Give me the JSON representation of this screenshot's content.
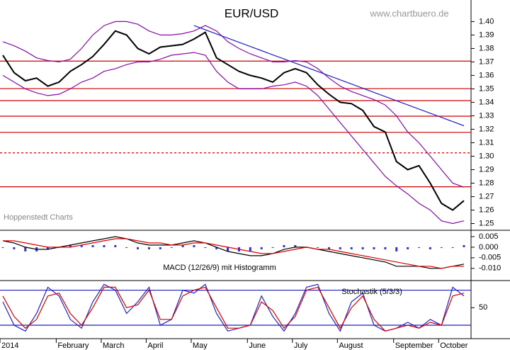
{
  "chart_data": [
    {
      "type": "line",
      "title": "EUR/USD",
      "source": "www.chartbuero.de",
      "annotation": "Hoppenstedt Charts",
      "categories": [
        "2014",
        null,
        null,
        null,
        null,
        "February",
        null,
        null,
        null,
        "March",
        null,
        null,
        null,
        "April",
        null,
        null,
        null,
        "May",
        null,
        null,
        null,
        null,
        "June",
        null,
        null,
        null,
        "July",
        null,
        null,
        null,
        "August",
        null,
        null,
        null,
        null,
        "September",
        null,
        null,
        null,
        "October",
        null,
        null
      ],
      "ylim": [
        1.245,
        1.416
      ],
      "yticks": [
        1.25,
        1.26,
        1.27,
        1.28,
        1.29,
        {
          "value": 1.3,
          "label": "1.30"
        },
        1.31,
        1.32,
        1.33,
        1.34,
        1.35,
        1.36,
        1.37,
        1.38,
        1.39,
        {
          "value": 1.4,
          "label": "1.40"
        }
      ],
      "levels": [
        {
          "value": 1.3706
        },
        {
          "value": 1.3502
        },
        {
          "value": 1.3413
        },
        {
          "value": 1.3297
        },
        {
          "value": 1.3177
        },
        {
          "value": 1.3025,
          "dashed": true
        },
        {
          "value": 1.2773
        }
      ],
      "level_color": "#cc0000",
      "series": [
        {
          "color": "#8a0aa8",
          "values": [
            1.385,
            1.382,
            1.378,
            1.373,
            1.371,
            1.37,
            1.372,
            1.38,
            1.39,
            1.397,
            1.4,
            1.4,
            1.398,
            1.393,
            1.39,
            1.39,
            1.391,
            1.393,
            1.397,
            1.393,
            1.385,
            1.38,
            1.376,
            1.373,
            1.37,
            1.37,
            1.371,
            1.37,
            1.365,
            1.358,
            1.352,
            1.348,
            1.345,
            1.342,
            1.338,
            1.33,
            1.318,
            1.31,
            1.3,
            1.29,
            1.28,
            1.277
          ]
        },
        {
          "color": "#8a0aa8",
          "values": [
            1.36,
            1.355,
            1.35,
            1.347,
            1.345,
            1.346,
            1.35,
            1.355,
            1.358,
            1.363,
            1.365,
            1.368,
            1.37,
            1.37,
            1.372,
            1.375,
            1.376,
            1.377,
            1.375,
            1.363,
            1.355,
            1.35,
            1.35,
            1.35,
            1.352,
            1.353,
            1.355,
            1.352,
            1.345,
            1.335,
            1.325,
            1.315,
            1.305,
            1.295,
            1.285,
            1.278,
            1.272,
            1.265,
            1.26,
            1.252,
            1.25,
            1.252
          ]
        },
        {
          "color": "#2020c0",
          "values": [
            null,
            null,
            null,
            null,
            null,
            null,
            null,
            null,
            null,
            null,
            null,
            null,
            null,
            null,
            null,
            null,
            null,
            1.397,
            1.3939,
            1.3908,
            1.3877,
            1.3846,
            1.3815,
            1.3784,
            1.3753,
            1.3722,
            1.3691,
            1.366,
            1.3629,
            1.3598,
            1.3567,
            1.3536,
            1.3505,
            1.3474,
            1.3443,
            1.3412,
            1.3381,
            1.335,
            1.3319,
            1.3288,
            1.3257,
            1.3226
          ]
        },
        {
          "color": "#000000",
          "width": 2,
          "values": [
            1.375,
            1.362,
            1.356,
            1.358,
            1.352,
            1.355,
            1.363,
            1.368,
            1.374,
            1.383,
            1.393,
            1.39,
            1.38,
            1.376,
            1.381,
            1.382,
            1.383,
            1.387,
            1.392,
            1.373,
            1.368,
            1.363,
            1.36,
            1.358,
            1.355,
            1.362,
            1.365,
            1.362,
            1.353,
            1.346,
            1.34,
            1.339,
            1.334,
            1.322,
            1.318,
            1.296,
            1.29,
            1.293,
            1.28,
            1.265,
            1.26,
            1.267
          ]
        }
      ]
    },
    {
      "type": "line",
      "title": "MACD (12/26/9) mit Histogramm",
      "ylim": [
        -0.0151,
        0.007
      ],
      "yticks": [
        0.005,
        {
          "value": 0,
          "label": "0.000"
        },
        -0.005,
        {
          "value": -0.01,
          "label": "-0.010"
        }
      ],
      "series": [
        {
          "type": "bar",
          "color": "#3333cc",
          "values": [
            0,
            -0.001,
            -0.002,
            -0.002,
            -0.001,
            0,
            0.001,
            0.001,
            0.001,
            0.001,
            0.001,
            0,
            -0.001,
            -0.001,
            -0.001,
            0,
            0.001,
            0.001,
            0,
            -0.001,
            -0.002,
            -0.002,
            -0.002,
            -0.001,
            0,
            0.001,
            0.001,
            0,
            0,
            -0.001,
            -0.001,
            -0.001,
            -0.001,
            -0.001,
            -0.001,
            -0.002,
            -0.001,
            0,
            -0.001,
            0,
            0,
            0.001
          ]
        },
        {
          "color": "#000000",
          "values": [
            0.003,
            0.002,
            0,
            -0.001,
            -0.001,
            0,
            0.001,
            0.002,
            0.003,
            0.004,
            0.005,
            0.004,
            0.002,
            0.001,
            0.001,
            0.001,
            0.002,
            0.003,
            0.002,
            0,
            -0.002,
            -0.003,
            -0.004,
            -0.004,
            -0.003,
            -0.001,
            0,
            0,
            -0.001,
            -0.002,
            -0.003,
            -0.004,
            -0.005,
            -0.006,
            -0.007,
            -0.009,
            -0.009,
            -0.009,
            -0.01,
            -0.01,
            -0.009,
            -0.008
          ]
        },
        {
          "color": "#dd0000",
          "values": [
            0.003,
            0.003,
            0.002,
            0.001,
            0,
            0,
            0,
            0.001,
            0.002,
            0.003,
            0.004,
            0.004,
            0.003,
            0.002,
            0.002,
            0.001,
            0.001,
            0.002,
            0.002,
            0.001,
            0,
            -0.001,
            -0.002,
            -0.003,
            -0.003,
            -0.002,
            -0.001,
            0,
            -0.001,
            -0.001,
            -0.002,
            -0.003,
            -0.004,
            -0.005,
            -0.006,
            -0.007,
            -0.008,
            -0.009,
            -0.009,
            -0.01,
            -0.009,
            -0.009
          ]
        }
      ]
    },
    {
      "type": "line",
      "title": "Stochastik (5/3/3)",
      "ylim": [
        -3,
        94
      ],
      "yticks": [
        50
      ],
      "levels": [
        {
          "value": 80
        },
        {
          "value": 20
        }
      ],
      "level_color": "#2020c0",
      "series": [
        {
          "color": "#2020d0",
          "values": [
            60,
            20,
            10,
            40,
            85,
            70,
            30,
            15,
            60,
            90,
            80,
            40,
            60,
            85,
            20,
            30,
            80,
            75,
            90,
            40,
            10,
            15,
            20,
            70,
            35,
            10,
            40,
            85,
            90,
            40,
            10,
            60,
            75,
            20,
            10,
            15,
            25,
            15,
            30,
            20,
            85,
            70
          ]
        },
        {
          "color": "#dd0000",
          "values": [
            70,
            35,
            15,
            30,
            70,
            75,
            40,
            20,
            50,
            85,
            85,
            50,
            55,
            80,
            30,
            30,
            70,
            80,
            85,
            50,
            15,
            15,
            20,
            60,
            45,
            15,
            35,
            80,
            85,
            50,
            15,
            50,
            70,
            30,
            10,
            15,
            20,
            15,
            25,
            20,
            70,
            75
          ]
        }
      ]
    }
  ]
}
